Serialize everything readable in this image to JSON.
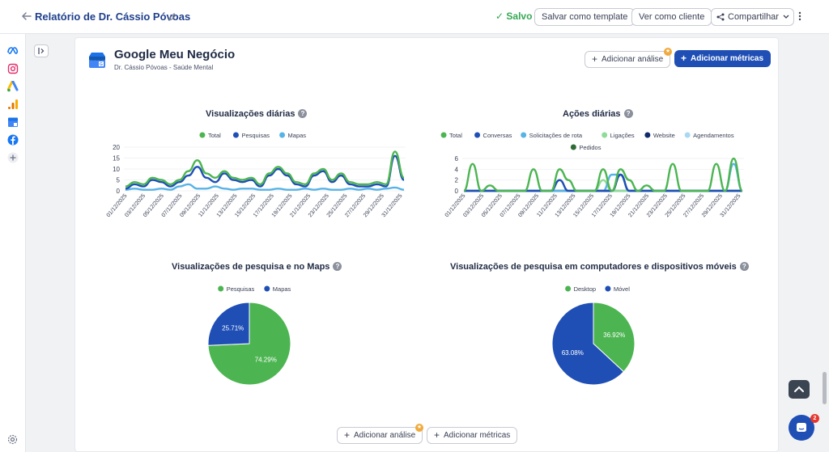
{
  "topbar": {
    "title": "Relatório de Dr. Cássio Póvoas",
    "saved": "✓ Salvo",
    "save_template": "Salvar como template",
    "view_client": "Ver como cliente",
    "share": "Compartilhar"
  },
  "rail": {
    "icons": [
      "meta-icon",
      "instagram-icon",
      "google-ads-icon",
      "google-analytics-icon",
      "google-my-business-icon",
      "facebook-icon",
      "add-icon"
    ]
  },
  "card": {
    "title": "Google Meu Negócio",
    "subtitle": "Dr. Cássio Póvoas - Saúde Mental",
    "add_analysis": "Adicionar análise",
    "add_metrics": "Adicionar métricas"
  },
  "footer_buttons": {
    "add_analysis": "Adicionar análise",
    "add_metrics": "Adicionar métricas"
  },
  "colors": {
    "accent": "#1f4fb5",
    "green": "#4cb551",
    "dark_blue": "#1f4fb5",
    "light_blue": "#57b3e6",
    "mint": "#8fdb9a",
    "navy": "#0f2a6b",
    "pale_blue": "#a9d8f2",
    "dark_green": "#2f6b34"
  },
  "chat": {
    "badge": "2"
  },
  "chart_data": [
    {
      "type": "line",
      "title": "Visualizações diárias",
      "x_tick_labels": [
        "01/12/2025",
        "03/12/2025",
        "05/12/2025",
        "07/12/2025",
        "09/12/2025",
        "11/12/2025",
        "13/12/2025",
        "15/12/2025",
        "17/12/2025",
        "19/12/2025",
        "21/12/2025",
        "23/12/2025",
        "25/12/2025",
        "27/12/2025",
        "29/12/2025",
        "31/12/2025"
      ],
      "ylim": [
        0,
        20
      ],
      "y_ticks": [
        "0",
        "5",
        "10",
        "15",
        "20"
      ],
      "series": [
        {
          "name": "Total",
          "color": "#4cb551",
          "values": [
            2,
            4,
            3,
            6,
            5,
            3,
            5,
            9,
            14,
            8,
            6,
            9,
            6,
            5,
            6,
            3,
            8,
            11,
            8,
            4,
            3,
            8,
            10,
            5,
            8,
            4,
            3,
            3,
            4,
            3,
            18,
            6
          ]
        },
        {
          "name": "Pesquisas",
          "color": "#1f4fb5",
          "values": [
            1,
            3,
            2,
            5,
            4,
            2,
            4,
            7,
            11,
            6,
            4,
            8,
            5,
            4,
            5,
            2,
            7,
            10,
            7,
            3,
            2,
            7,
            9,
            4,
            7,
            3,
            2,
            2,
            3,
            2,
            16,
            5
          ]
        },
        {
          "name": "Mapas",
          "color": "#57b3e6",
          "values": [
            0.5,
            1,
            0.5,
            0.5,
            1,
            0.5,
            2,
            3,
            1,
            1,
            2,
            1,
            0.5,
            1,
            1,
            0.5,
            0.5,
            1,
            0.5,
            0.5,
            1,
            0.5,
            1,
            0.5,
            0.5,
            1,
            0.5,
            1,
            0.5,
            1,
            1.5,
            0.5
          ]
        }
      ]
    },
    {
      "type": "line",
      "title": "Ações diárias",
      "x_tick_labels": [
        "01/12/2025",
        "03/12/2025",
        "05/12/2025",
        "07/12/2025",
        "09/12/2025",
        "11/12/2025",
        "13/12/2025",
        "15/12/2025",
        "17/12/2025",
        "19/12/2025",
        "21/12/2025",
        "23/12/2025",
        "25/12/2025",
        "27/12/2025",
        "29/12/2025",
        "31/12/2025"
      ],
      "ylim": [
        0,
        6
      ],
      "y_ticks": [
        "0",
        "2",
        "4",
        "6"
      ],
      "series": [
        {
          "name": "Total",
          "color": "#4cb551",
          "values": [
            0,
            5,
            0,
            1,
            0,
            0,
            0,
            0,
            4,
            0,
            0,
            4,
            2,
            0,
            0,
            0,
            4,
            0,
            4,
            2,
            0,
            1,
            0,
            0,
            5,
            0,
            0,
            0,
            0,
            5,
            0,
            6,
            0
          ]
        },
        {
          "name": "Conversas",
          "color": "#1f4fb5",
          "values": [
            0,
            0,
            0,
            0,
            0,
            0,
            0,
            0,
            0,
            0,
            0,
            2,
            0,
            0,
            0,
            0,
            0,
            0,
            3,
            0,
            0,
            0,
            0,
            0,
            0,
            0,
            0,
            0,
            0,
            0,
            0,
            0,
            0
          ]
        },
        {
          "name": "Solicitações de rota",
          "color": "#57b3e6",
          "values": [
            0,
            0,
            0,
            0,
            0,
            0,
            0,
            0,
            0,
            0,
            0,
            0,
            0,
            0,
            0,
            0,
            0,
            3,
            3,
            0,
            0,
            0,
            0,
            0,
            0,
            0,
            0,
            0,
            0,
            0,
            0,
            5,
            0
          ]
        },
        {
          "name": "Ligações",
          "color": "#8fdb9a",
          "values": [
            0,
            0,
            0,
            0,
            0,
            0,
            0,
            0,
            0,
            0,
            0,
            0,
            0,
            0,
            0,
            0,
            2,
            0,
            0,
            0,
            0,
            0,
            0,
            0,
            0,
            0,
            0,
            0,
            0,
            0,
            0,
            0,
            0
          ]
        },
        {
          "name": "Website",
          "color": "#0f2a6b",
          "values": [
            0,
            0,
            0,
            0,
            0,
            0,
            0,
            0,
            0,
            0,
            0,
            0,
            0,
            0,
            0,
            0,
            0,
            0,
            3,
            0,
            0,
            0,
            0,
            0,
            0,
            0,
            0,
            0,
            0,
            0,
            0,
            0,
            0
          ]
        },
        {
          "name": "Agendamentos",
          "color": "#a9d8f2",
          "values": [
            0,
            0,
            0,
            0,
            0,
            0,
            0,
            0,
            0,
            0,
            0,
            0,
            0,
            0,
            0,
            0,
            0,
            0,
            0,
            0,
            0,
            0,
            0,
            0,
            0,
            0,
            0,
            0,
            0,
            0,
            0,
            0,
            0
          ]
        },
        {
          "name": "Pedidos",
          "color": "#2f6b34",
          "values": [
            0,
            0,
            0,
            0,
            0,
            0,
            0,
            0,
            0,
            0,
            0,
            0,
            0,
            0,
            0,
            0,
            0,
            0,
            0,
            0,
            0,
            0,
            0,
            0,
            0,
            0,
            0,
            0,
            0,
            0,
            0,
            0,
            0
          ]
        }
      ]
    },
    {
      "type": "pie",
      "title": "Visualizações de pesquisa e no Maps",
      "slices": [
        {
          "name": "Pesquisas",
          "color": "#4cb551",
          "value": 74.29,
          "label": "74.29%"
        },
        {
          "name": "Mapas",
          "color": "#1f4fb5",
          "value": 25.71,
          "label": "25.71%"
        }
      ]
    },
    {
      "type": "pie",
      "title": "Visualizações de pesquisa em computadores e dispositivos móveis",
      "slices": [
        {
          "name": "Desktop",
          "color": "#4cb551",
          "value": 36.92,
          "label": "36.92%"
        },
        {
          "name": "Móvel",
          "color": "#1f4fb5",
          "value": 63.08,
          "label": "63.08%"
        }
      ]
    }
  ]
}
